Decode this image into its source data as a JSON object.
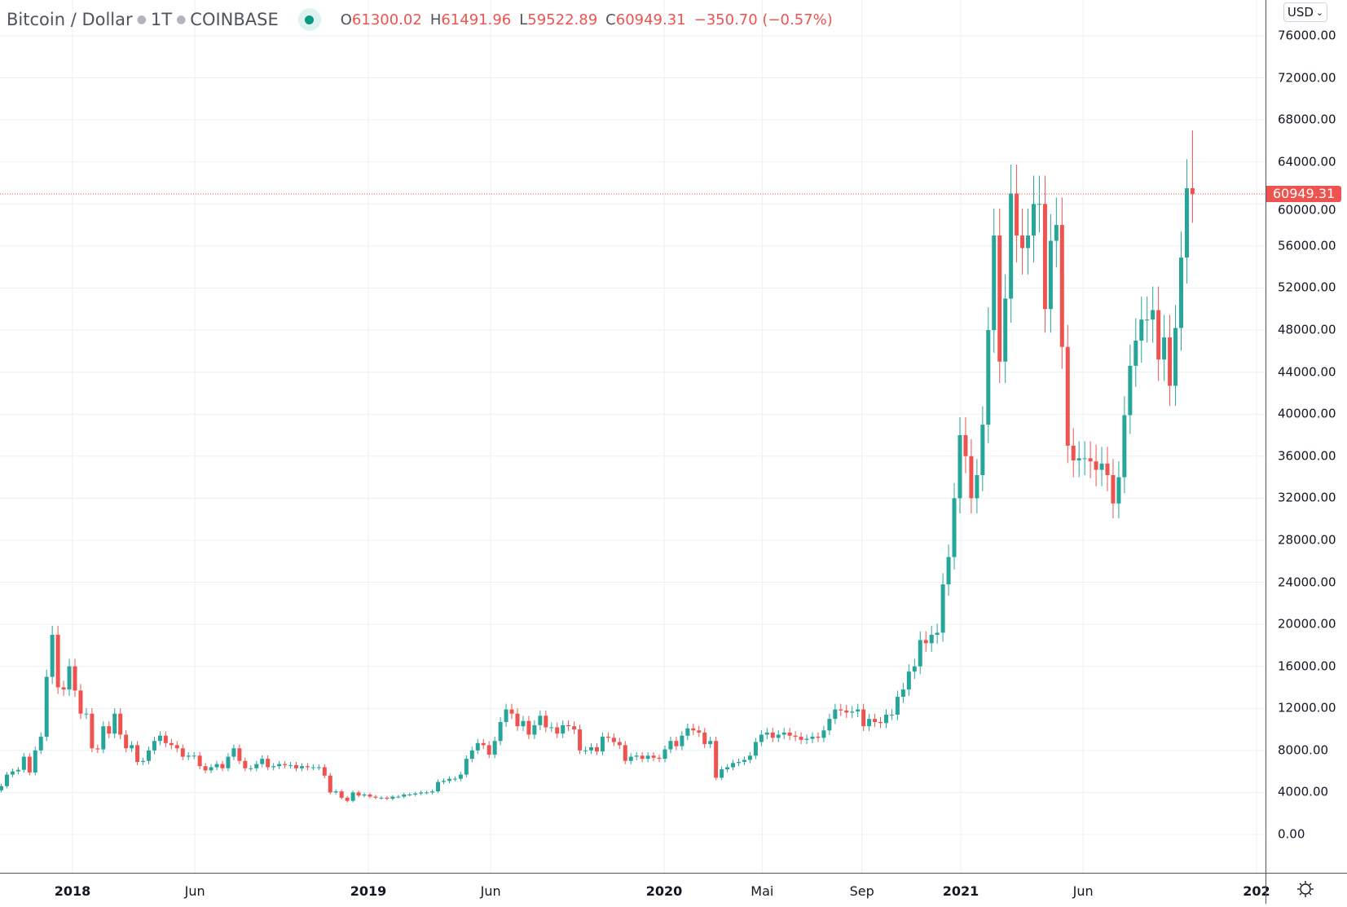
{
  "header": {
    "symbol": "Bitcoin / Dollar",
    "interval": "1T",
    "exchange": "COINBASE",
    "open_label": "O",
    "open": "61300.02",
    "high_label": "H",
    "high": "61491.96",
    "low_label": "L",
    "low": "59522.89",
    "close_label": "C",
    "close": "60949.31",
    "change": "−350.70 (−0.57%)"
  },
  "currency_button": "USD",
  "last_price_label": "60949.31",
  "colors": {
    "up": "#26a69a",
    "down": "#ef5350",
    "grid": "#e9f1f5",
    "last_price": "#ef5350"
  },
  "icons": {
    "settings": "sun-gear-icon",
    "status": "market-status-dot-icon"
  },
  "chart_data": {
    "type": "candlestick",
    "title": "Bitcoin / Dollar · 1T · COINBASE",
    "ylim": [
      0,
      76000
    ],
    "y_ticks": [
      "76000.00",
      "72000.00",
      "68000.00",
      "64000.00",
      "60000.00",
      "56000.00",
      "52000.00",
      "48000.00",
      "44000.00",
      "40000.00",
      "36000.00",
      "32000.00",
      "28000.00",
      "24000.00",
      "20000.00",
      "16000.00",
      "12000.00",
      "8000.00",
      "4000.00",
      "0.00"
    ],
    "x_ticks": [
      {
        "label": "2018",
        "date": "2018-01-01",
        "year": true
      },
      {
        "label": "Jun",
        "date": "2018-06-01",
        "year": false
      },
      {
        "label": "2019",
        "date": "2019-01-01",
        "year": true
      },
      {
        "label": "Jun",
        "date": "2019-06-01",
        "year": false
      },
      {
        "label": "2020",
        "date": "2020-01-01",
        "year": true
      },
      {
        "label": "Mai",
        "date": "2020-05-01",
        "year": false
      },
      {
        "label": "Sep",
        "date": "2020-09-01",
        "year": false
      },
      {
        "label": "2021",
        "date": "2021-01-01",
        "year": true
      },
      {
        "label": "Jun",
        "date": "2021-06-01",
        "year": false
      },
      {
        "label": "202",
        "date": "2022-01-01",
        "year": true
      }
    ],
    "grid": true,
    "last_price": 60949.31,
    "series_start": "2017-10-02",
    "series_step_days": 7,
    "first_open": 4200,
    "peak_high": 67000,
    "weekly_close": [
      4600,
      5700,
      6000,
      6150,
      7400,
      5900,
      8000,
      9300,
      15000,
      19000,
      14000,
      13800,
      16000,
      13700,
      11500,
      11500,
      8200,
      8100,
      10300,
      9600,
      11500,
      9500,
      8200,
      8500,
      6900,
      7000,
      8000,
      8900,
      9400,
      8700,
      8500,
      8200,
      7400,
      7500,
      7500,
      6500,
      6100,
      6400,
      6700,
      6300,
      7400,
      8200,
      7000,
      6300,
      6300,
      6700,
      7200,
      6400,
      6500,
      6700,
      6600,
      6600,
      6300,
      6500,
      6400,
      6400,
      6400,
      5600,
      4000,
      4100,
      3500,
      3200,
      4000,
      3700,
      3800,
      3600,
      3500,
      3500,
      3400,
      3600,
      3600,
      3800,
      3800,
      3900,
      4000,
      4000,
      4100,
      5000,
      5100,
      5300,
      5300,
      5700,
      7200,
      8000,
      8700,
      8500,
      7600,
      8900,
      10700,
      11900,
      11500,
      10300,
      10800,
      9500,
      10400,
      11300,
      10200,
      10200,
      9600,
      10400,
      10300,
      10000,
      8000,
      8000,
      8300,
      7900,
      9300,
      9200,
      8800,
      8500,
      7000,
      7400,
      7500,
      7200,
      7500,
      7300,
      7200,
      8100,
      8900,
      8400,
      9400,
      10100,
      9900,
      9700,
      8600,
      8900,
      5400,
      6200,
      6400,
      6800,
      6900,
      7100,
      7500,
      8800,
      9500,
      9700,
      9200,
      9500,
      9700,
      9400,
      9300,
      9000,
      9100,
      9300,
      9200,
      9900,
      11000,
      11900,
      11800,
      11600,
      11700,
      11900,
      10300,
      11000,
      10700,
      10600,
      11400,
      11400,
      13100,
      13800,
      15500,
      16000,
      18500,
      18200,
      19000,
      19200,
      23800,
      26400,
      32000,
      38000,
      36000,
      32000,
      34200,
      39000,
      48000,
      57000,
      45000,
      51000,
      61000,
      57000,
      55800,
      57000,
      60000,
      60000,
      50000,
      56500,
      58000,
      46400,
      37000,
      35600,
      35800,
      35800,
      35500,
      34700,
      35300,
      34200,
      31500,
      34000,
      39900,
      44600,
      47000,
      49000,
      49000,
      49900,
      45200,
      47300,
      42700,
      48200,
      54900,
      61500,
      60949.31
    ]
  }
}
